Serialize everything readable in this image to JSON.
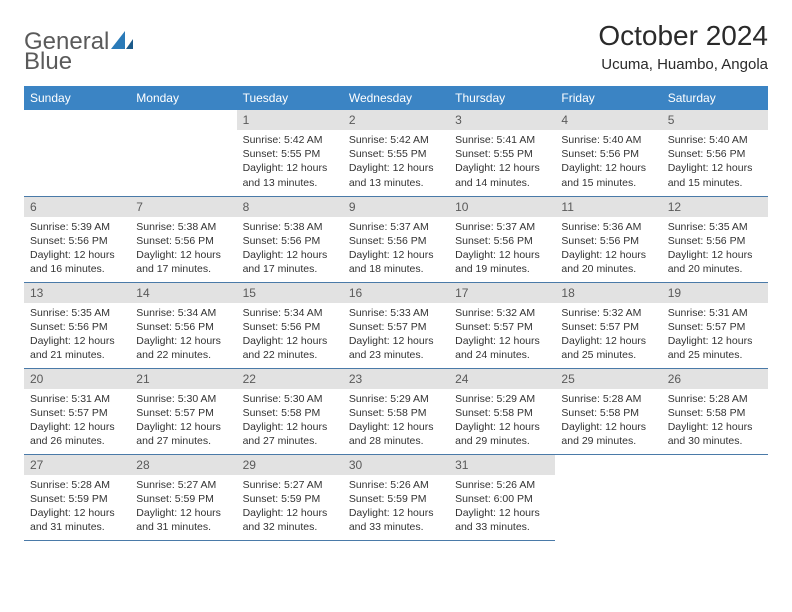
{
  "logo": {
    "word1": "General",
    "word2": "Blue"
  },
  "title": "October 2024",
  "location": "Ucuma, Huambo, Angola",
  "colors": {
    "header_bg": "#3b84c4",
    "header_text": "#ffffff",
    "daynum_bg": "#e2e2e2",
    "daynum_text": "#5a5a5a",
    "rule": "#4a7aa8",
    "body_text": "#333333",
    "logo_gray": "#5a5a5a",
    "logo_blue": "#2a7ab8"
  },
  "weekdays": [
    "Sunday",
    "Monday",
    "Tuesday",
    "Wednesday",
    "Thursday",
    "Friday",
    "Saturday"
  ],
  "weeks": [
    [
      null,
      null,
      {
        "n": "1",
        "sr": "Sunrise: 5:42 AM",
        "ss": "Sunset: 5:55 PM",
        "dl1": "Daylight: 12 hours",
        "dl2": "and 13 minutes."
      },
      {
        "n": "2",
        "sr": "Sunrise: 5:42 AM",
        "ss": "Sunset: 5:55 PM",
        "dl1": "Daylight: 12 hours",
        "dl2": "and 13 minutes."
      },
      {
        "n": "3",
        "sr": "Sunrise: 5:41 AM",
        "ss": "Sunset: 5:55 PM",
        "dl1": "Daylight: 12 hours",
        "dl2": "and 14 minutes."
      },
      {
        "n": "4",
        "sr": "Sunrise: 5:40 AM",
        "ss": "Sunset: 5:56 PM",
        "dl1": "Daylight: 12 hours",
        "dl2": "and 15 minutes."
      },
      {
        "n": "5",
        "sr": "Sunrise: 5:40 AM",
        "ss": "Sunset: 5:56 PM",
        "dl1": "Daylight: 12 hours",
        "dl2": "and 15 minutes."
      }
    ],
    [
      {
        "n": "6",
        "sr": "Sunrise: 5:39 AM",
        "ss": "Sunset: 5:56 PM",
        "dl1": "Daylight: 12 hours",
        "dl2": "and 16 minutes."
      },
      {
        "n": "7",
        "sr": "Sunrise: 5:38 AM",
        "ss": "Sunset: 5:56 PM",
        "dl1": "Daylight: 12 hours",
        "dl2": "and 17 minutes."
      },
      {
        "n": "8",
        "sr": "Sunrise: 5:38 AM",
        "ss": "Sunset: 5:56 PM",
        "dl1": "Daylight: 12 hours",
        "dl2": "and 17 minutes."
      },
      {
        "n": "9",
        "sr": "Sunrise: 5:37 AM",
        "ss": "Sunset: 5:56 PM",
        "dl1": "Daylight: 12 hours",
        "dl2": "and 18 minutes."
      },
      {
        "n": "10",
        "sr": "Sunrise: 5:37 AM",
        "ss": "Sunset: 5:56 PM",
        "dl1": "Daylight: 12 hours",
        "dl2": "and 19 minutes."
      },
      {
        "n": "11",
        "sr": "Sunrise: 5:36 AM",
        "ss": "Sunset: 5:56 PM",
        "dl1": "Daylight: 12 hours",
        "dl2": "and 20 minutes."
      },
      {
        "n": "12",
        "sr": "Sunrise: 5:35 AM",
        "ss": "Sunset: 5:56 PM",
        "dl1": "Daylight: 12 hours",
        "dl2": "and 20 minutes."
      }
    ],
    [
      {
        "n": "13",
        "sr": "Sunrise: 5:35 AM",
        "ss": "Sunset: 5:56 PM",
        "dl1": "Daylight: 12 hours",
        "dl2": "and 21 minutes."
      },
      {
        "n": "14",
        "sr": "Sunrise: 5:34 AM",
        "ss": "Sunset: 5:56 PM",
        "dl1": "Daylight: 12 hours",
        "dl2": "and 22 minutes."
      },
      {
        "n": "15",
        "sr": "Sunrise: 5:34 AM",
        "ss": "Sunset: 5:56 PM",
        "dl1": "Daylight: 12 hours",
        "dl2": "and 22 minutes."
      },
      {
        "n": "16",
        "sr": "Sunrise: 5:33 AM",
        "ss": "Sunset: 5:57 PM",
        "dl1": "Daylight: 12 hours",
        "dl2": "and 23 minutes."
      },
      {
        "n": "17",
        "sr": "Sunrise: 5:32 AM",
        "ss": "Sunset: 5:57 PM",
        "dl1": "Daylight: 12 hours",
        "dl2": "and 24 minutes."
      },
      {
        "n": "18",
        "sr": "Sunrise: 5:32 AM",
        "ss": "Sunset: 5:57 PM",
        "dl1": "Daylight: 12 hours",
        "dl2": "and 25 minutes."
      },
      {
        "n": "19",
        "sr": "Sunrise: 5:31 AM",
        "ss": "Sunset: 5:57 PM",
        "dl1": "Daylight: 12 hours",
        "dl2": "and 25 minutes."
      }
    ],
    [
      {
        "n": "20",
        "sr": "Sunrise: 5:31 AM",
        "ss": "Sunset: 5:57 PM",
        "dl1": "Daylight: 12 hours",
        "dl2": "and 26 minutes."
      },
      {
        "n": "21",
        "sr": "Sunrise: 5:30 AM",
        "ss": "Sunset: 5:57 PM",
        "dl1": "Daylight: 12 hours",
        "dl2": "and 27 minutes."
      },
      {
        "n": "22",
        "sr": "Sunrise: 5:30 AM",
        "ss": "Sunset: 5:58 PM",
        "dl1": "Daylight: 12 hours",
        "dl2": "and 27 minutes."
      },
      {
        "n": "23",
        "sr": "Sunrise: 5:29 AM",
        "ss": "Sunset: 5:58 PM",
        "dl1": "Daylight: 12 hours",
        "dl2": "and 28 minutes."
      },
      {
        "n": "24",
        "sr": "Sunrise: 5:29 AM",
        "ss": "Sunset: 5:58 PM",
        "dl1": "Daylight: 12 hours",
        "dl2": "and 29 minutes."
      },
      {
        "n": "25",
        "sr": "Sunrise: 5:28 AM",
        "ss": "Sunset: 5:58 PM",
        "dl1": "Daylight: 12 hours",
        "dl2": "and 29 minutes."
      },
      {
        "n": "26",
        "sr": "Sunrise: 5:28 AM",
        "ss": "Sunset: 5:58 PM",
        "dl1": "Daylight: 12 hours",
        "dl2": "and 30 minutes."
      }
    ],
    [
      {
        "n": "27",
        "sr": "Sunrise: 5:28 AM",
        "ss": "Sunset: 5:59 PM",
        "dl1": "Daylight: 12 hours",
        "dl2": "and 31 minutes."
      },
      {
        "n": "28",
        "sr": "Sunrise: 5:27 AM",
        "ss": "Sunset: 5:59 PM",
        "dl1": "Daylight: 12 hours",
        "dl2": "and 31 minutes."
      },
      {
        "n": "29",
        "sr": "Sunrise: 5:27 AM",
        "ss": "Sunset: 5:59 PM",
        "dl1": "Daylight: 12 hours",
        "dl2": "and 32 minutes."
      },
      {
        "n": "30",
        "sr": "Sunrise: 5:26 AM",
        "ss": "Sunset: 5:59 PM",
        "dl1": "Daylight: 12 hours",
        "dl2": "and 33 minutes."
      },
      {
        "n": "31",
        "sr": "Sunrise: 5:26 AM",
        "ss": "Sunset: 6:00 PM",
        "dl1": "Daylight: 12 hours",
        "dl2": "and 33 minutes."
      },
      null,
      null
    ]
  ]
}
